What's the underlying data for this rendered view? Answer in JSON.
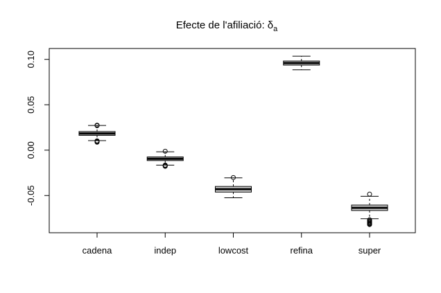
{
  "chart_data": {
    "type": "boxplot",
    "title": "Efecte de l'afiliació: δ",
    "title_subscript": "a",
    "xlabel": "",
    "ylabel": "",
    "ylim": [
      -0.091,
      0.112
    ],
    "yticks": [
      -0.05,
      0.0,
      0.05,
      0.1
    ],
    "ytick_labels": [
      "-0.05",
      "0.00",
      "0.05",
      "0.10"
    ],
    "grid": false,
    "categories": [
      "cadena",
      "indep",
      "lowcost",
      "refina",
      "super"
    ],
    "boxes": [
      {
        "category": "cadena",
        "whisker_low": 0.0105,
        "q1": 0.0163,
        "median": 0.0183,
        "q3": 0.0205,
        "whisker_high": 0.0272,
        "outliers": [
          0.0275,
          0.027,
          0.0102,
          0.0095,
          0.0088
        ]
      },
      {
        "category": "indep",
        "whisker_low": -0.0165,
        "q1": -0.0115,
        "median": -0.0095,
        "q3": -0.0075,
        "whisker_high": -0.0018,
        "outliers": [
          -0.0012,
          -0.0165,
          -0.0172,
          -0.0178
        ]
      },
      {
        "category": "lowcost",
        "whisker_low": -0.0525,
        "q1": -0.0462,
        "median": -0.043,
        "q3": -0.04,
        "whisker_high": -0.0305,
        "outliers": [
          -0.0302
        ]
      },
      {
        "category": "refina",
        "whisker_low": 0.0885,
        "q1": 0.0937,
        "median": 0.096,
        "q3": 0.0982,
        "whisker_high": 0.1035,
        "outliers": []
      },
      {
        "category": "super",
        "whisker_low": -0.0755,
        "q1": -0.0665,
        "median": -0.0635,
        "q3": -0.0605,
        "whisker_high": -0.0508,
        "outliers": [
          -0.0485,
          -0.0768,
          -0.0778,
          -0.0788,
          -0.0796,
          -0.0805,
          -0.0812,
          -0.082
        ]
      }
    ]
  }
}
